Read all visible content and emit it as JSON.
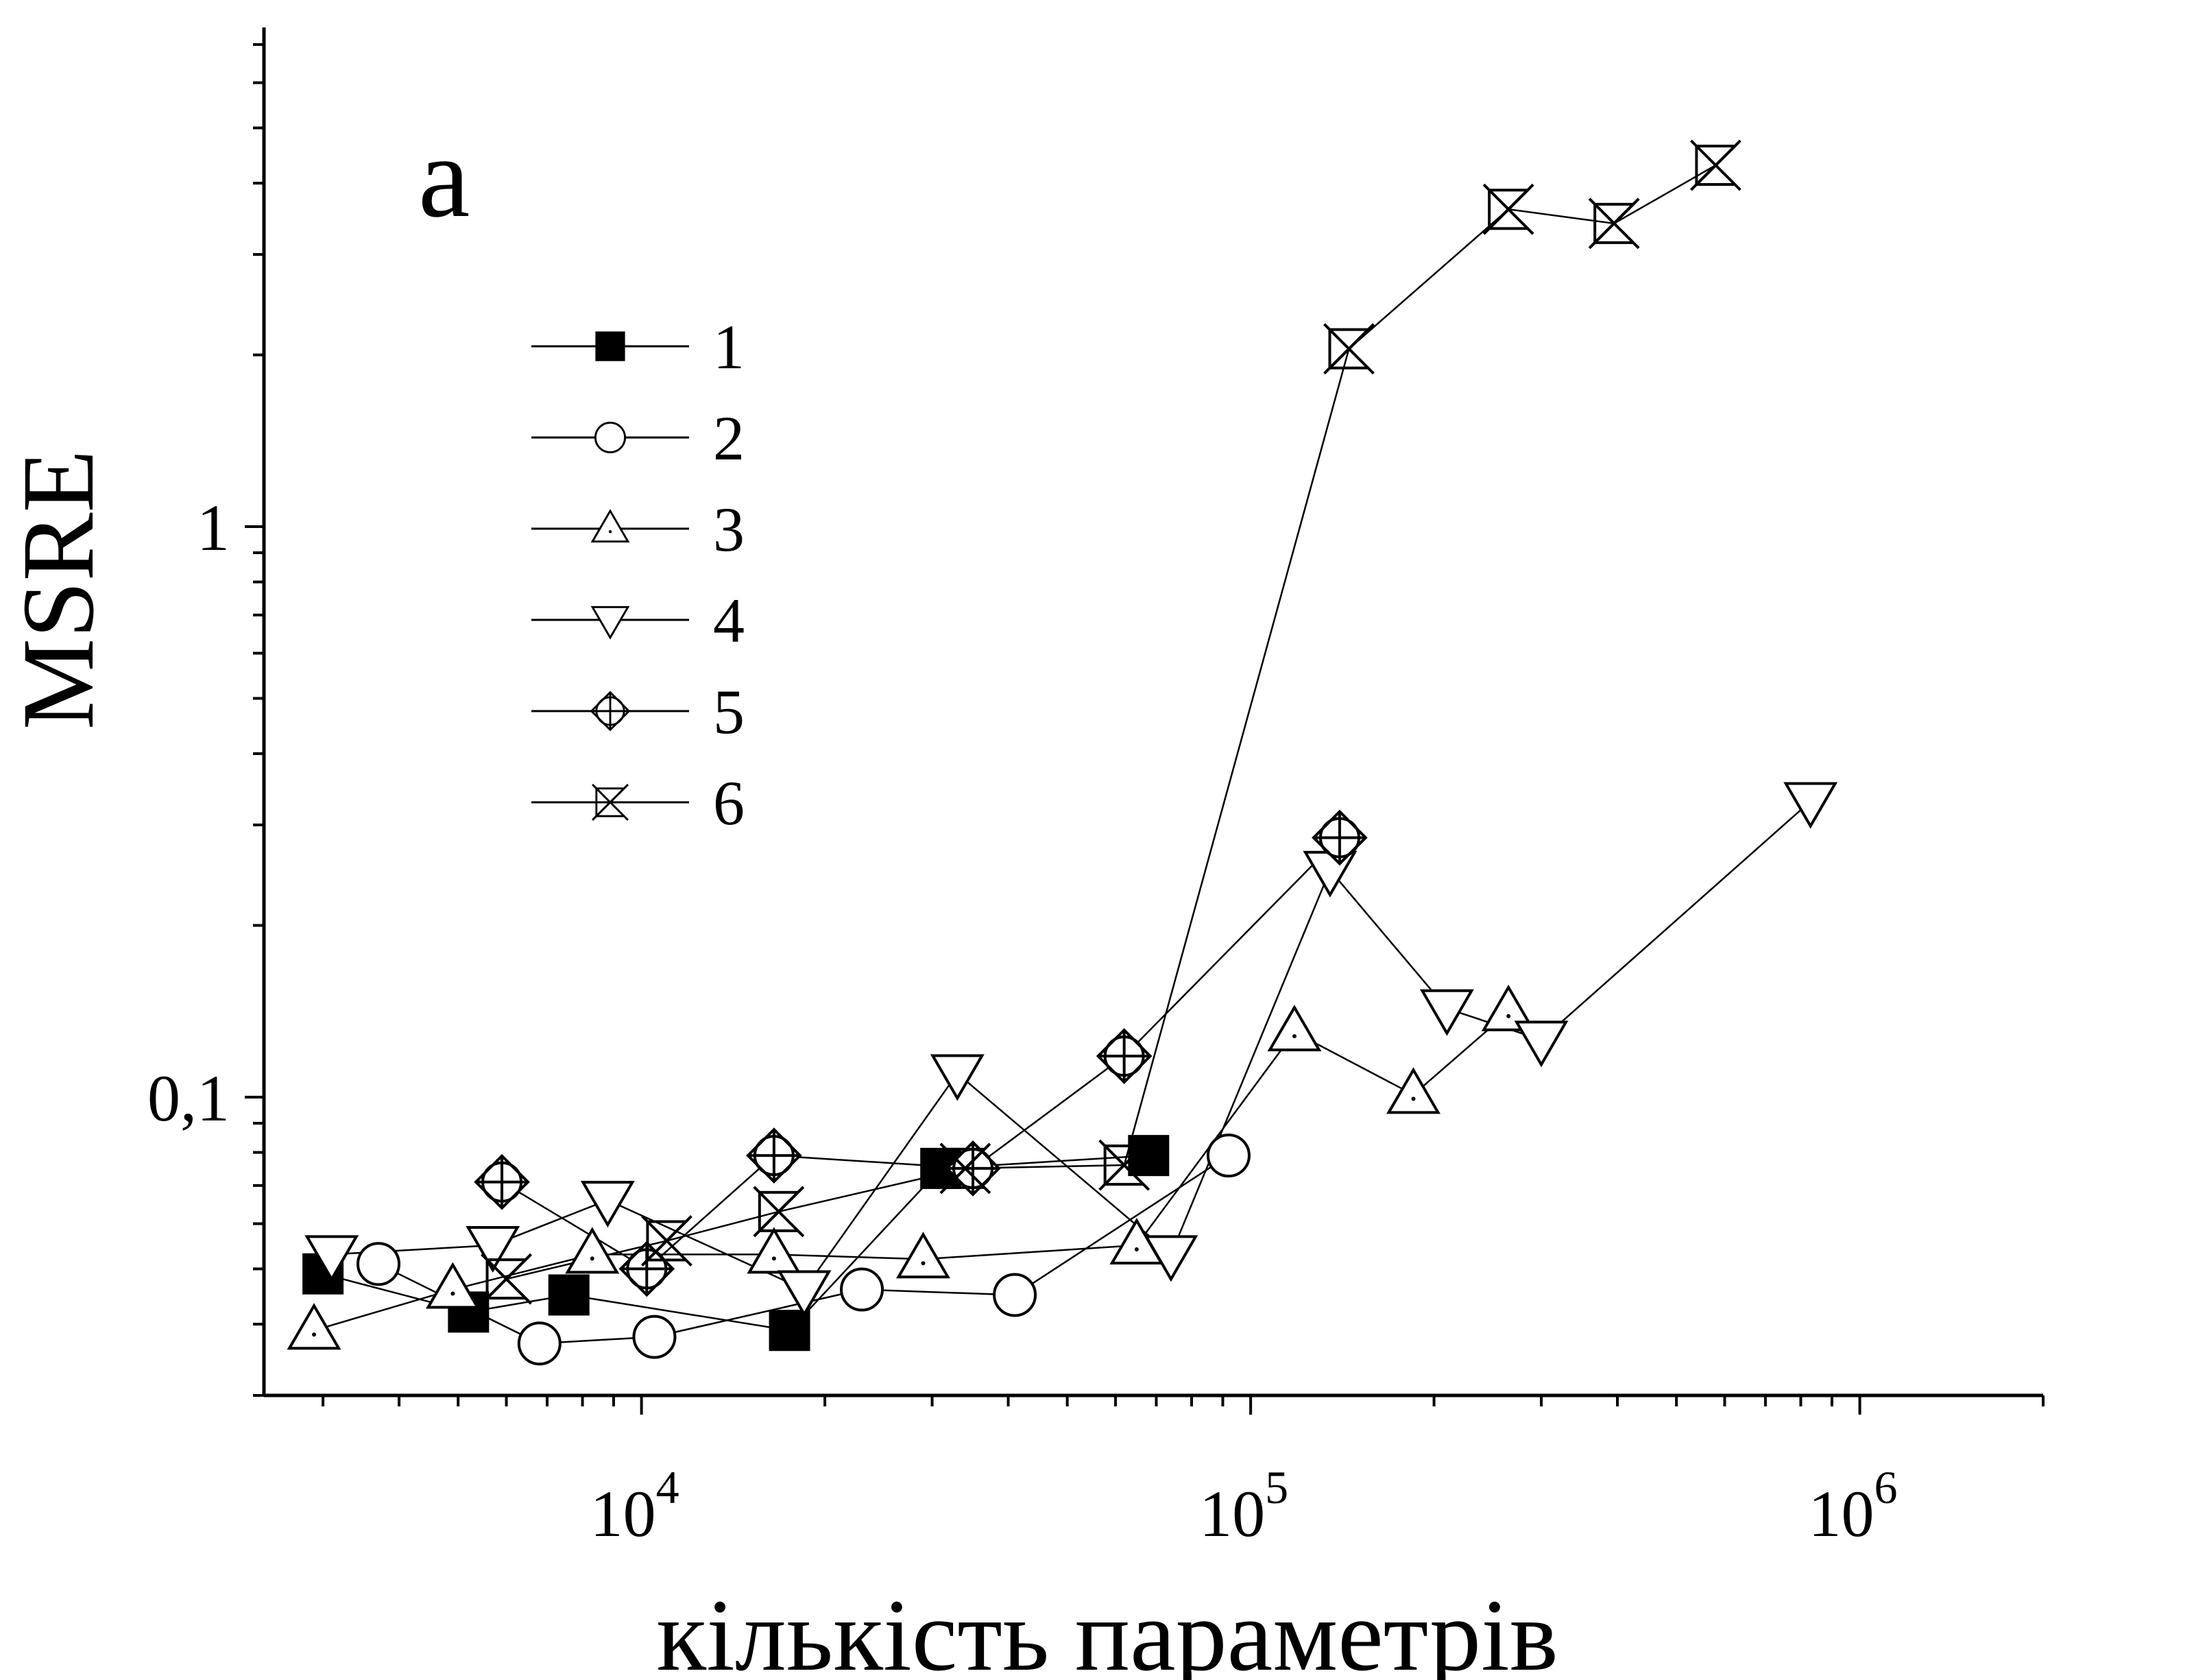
{
  "chart_data": {
    "type": "scatter",
    "panel_label": "a",
    "xlabel": "кількість параметрів",
    "ylabel": "MSRE",
    "x_scale": "log",
    "y_scale": "log",
    "xlim": [
      2400,
      2000000
    ],
    "ylim": [
      0.03,
      7.5
    ],
    "x_ticks": [
      {
        "value": 10000,
        "base": "10",
        "exp": "4"
      },
      {
        "value": 100000,
        "base": "10",
        "exp": "5"
      },
      {
        "value": 1000000,
        "base": "10",
        "exp": "6"
      }
    ],
    "y_ticks": [
      {
        "value": 0.1,
        "label": "0,1"
      },
      {
        "value": 1,
        "label": "1"
      }
    ],
    "grid": false,
    "legend_position": "upper-left",
    "series": [
      {
        "name": "1",
        "marker": "square-filled",
        "points": [
          [
            3000,
            0.049
          ],
          [
            5200,
            0.042
          ],
          [
            7600,
            0.045
          ],
          [
            17500,
            0.039
          ],
          [
            31000,
            0.075
          ],
          [
            68000,
            0.079
          ]
        ]
      },
      {
        "name": "2",
        "marker": "circle",
        "points": [
          [
            3700,
            0.051
          ],
          [
            6800,
            0.037
          ],
          [
            10500,
            0.038
          ],
          [
            23000,
            0.046
          ],
          [
            41000,
            0.045
          ],
          [
            92000,
            0.079
          ]
        ]
      },
      {
        "name": "3",
        "marker": "triangle-up",
        "points": [
          [
            2900,
            0.039
          ],
          [
            4900,
            0.046
          ],
          [
            8300,
            0.053
          ],
          [
            16500,
            0.053
          ],
          [
            29000,
            0.052
          ],
          [
            65000,
            0.055
          ],
          [
            118000,
            0.13
          ],
          [
            185000,
            0.101
          ],
          [
            265000,
            0.141
          ]
        ]
      },
      {
        "name": "4",
        "marker": "triangle-down",
        "points": [
          [
            3100,
            0.053
          ],
          [
            5700,
            0.055
          ],
          [
            8800,
            0.066
          ],
          [
            18500,
            0.046
          ],
          [
            33000,
            0.11
          ],
          [
            74000,
            0.053
          ],
          [
            135000,
            0.25
          ],
          [
            210000,
            0.143
          ],
          [
            300000,
            0.126
          ],
          [
            830000,
            0.33
          ]
        ]
      },
      {
        "name": "5",
        "marker": "diamond-cross",
        "points": [
          [
            5900,
            0.071
          ],
          [
            10200,
            0.05
          ],
          [
            16500,
            0.079
          ],
          [
            35000,
            0.075
          ],
          [
            62000,
            0.118
          ],
          [
            140000,
            0.285
          ]
        ]
      },
      {
        "name": "6",
        "marker": "square-x",
        "points": [
          [
            6000,
            0.048
          ],
          [
            11000,
            0.056
          ],
          [
            16800,
            0.063
          ],
          [
            34000,
            0.075
          ],
          [
            62000,
            0.076
          ],
          [
            145000,
            2.05
          ],
          [
            265000,
            3.6
          ],
          [
            395000,
            3.4
          ],
          [
            580000,
            4.3
          ]
        ]
      }
    ]
  }
}
